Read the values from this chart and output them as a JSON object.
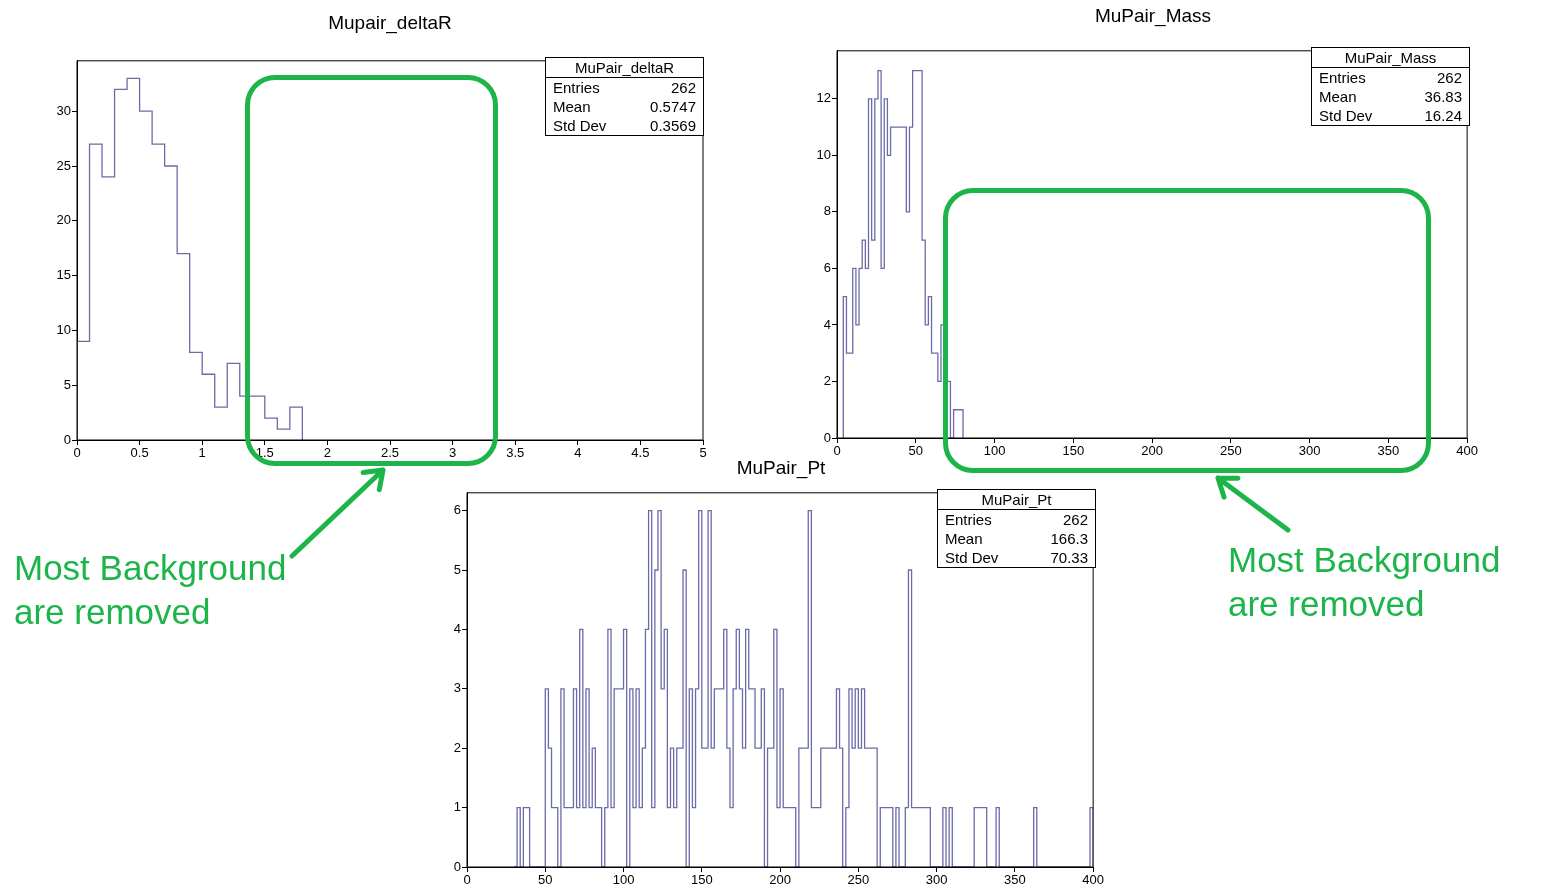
{
  "chart_data": [
    {
      "type": "histogram",
      "title": "Mupair_deltaR",
      "bins": [
        0,
        0.1,
        0.2,
        0.3,
        0.4,
        0.5,
        0.6,
        0.7,
        0.8,
        0.9,
        1,
        1.1,
        1.2,
        1.3,
        1.4,
        1.5,
        1.6,
        1.7,
        1.8
      ],
      "values": [
        9,
        27,
        24,
        32,
        33,
        30,
        27,
        25,
        17,
        8,
        6,
        3,
        7,
        4,
        4,
        2,
        1,
        3
      ],
      "color": "#6b6ba8",
      "xlim": [
        0,
        5
      ],
      "xticks": [
        0,
        0.5,
        1,
        1.5,
        2,
        2.5,
        3,
        3.5,
        4,
        4.5,
        5
      ],
      "ylim": [
        0,
        34.6
      ],
      "yticks": [
        0,
        5,
        10,
        15,
        20,
        25,
        30
      ],
      "grid": false,
      "annotations": [
        "MuPair_deltaR",
        "Entries",
        "262",
        "Mean",
        "0.5747",
        "Std Dev",
        "0.3569",
        "Most Background are removed"
      ]
    },
    {
      "type": "histogram",
      "title": "MuPair_Mass",
      "bins": [
        4,
        6,
        10,
        12,
        14,
        16,
        18,
        20,
        22,
        24,
        26,
        28,
        30,
        32,
        34,
        44,
        46,
        48,
        54,
        56,
        58,
        60,
        64,
        66,
        68,
        72,
        74,
        80
      ],
      "values": [
        5,
        3,
        6,
        4,
        6,
        7,
        6,
        12,
        7,
        12,
        13,
        6,
        12,
        10,
        11,
        8,
        11,
        13,
        7,
        4,
        5,
        3,
        2,
        4,
        2,
        0,
        1
      ],
      "color": "#6b6ba8",
      "xlim": [
        0,
        400
      ],
      "xticks": [
        0,
        50,
        100,
        150,
        200,
        250,
        300,
        350,
        400
      ],
      "ylim": [
        0,
        13.7
      ],
      "yticks": [
        0,
        2,
        4,
        6,
        8,
        10,
        12
      ],
      "grid": false,
      "annotations": [
        "MuPair_Mass",
        "Entries",
        "262",
        "Mean",
        "36.83",
        "Std Dev",
        "16.24",
        "Most Background are removed"
      ]
    },
    {
      "type": "histogram",
      "title": "MuPair_Pt",
      "bins": [
        30,
        32,
        34,
        36,
        38,
        40,
        42,
        44,
        46,
        48,
        50,
        52,
        54,
        56,
        58,
        60,
        62,
        64,
        66,
        68,
        70,
        72,
        74,
        76,
        78,
        80,
        82,
        84,
        86,
        88,
        90,
        92,
        94,
        96,
        98,
        100,
        102,
        104,
        106,
        108,
        110,
        112,
        114,
        116,
        118,
        120,
        122,
        124,
        126,
        128,
        130,
        132,
        134,
        136,
        138,
        140,
        142,
        144,
        146,
        148,
        150,
        152,
        154,
        156,
        158,
        160,
        162,
        164,
        166,
        168,
        170,
        172,
        174,
        176,
        178,
        180,
        182,
        184,
        186,
        188,
        190,
        192,
        194,
        196,
        198,
        200,
        202,
        204,
        206,
        208,
        210,
        212,
        214,
        216,
        218,
        220,
        222,
        224,
        226,
        228,
        230,
        232,
        234,
        236,
        238,
        240,
        242,
        244,
        246,
        248,
        250,
        252,
        254,
        256,
        258,
        260,
        262,
        264,
        266,
        268,
        270,
        272,
        274,
        276,
        278,
        280,
        282,
        284,
        286,
        288,
        290,
        292,
        294,
        296,
        298,
        300,
        302,
        304,
        306,
        308,
        310,
        312,
        314,
        316,
        318,
        320,
        322,
        324,
        326,
        328,
        330,
        332,
        334,
        336,
        338,
        340,
        342,
        344,
        346,
        348,
        350,
        352,
        354,
        356,
        358,
        360,
        362,
        364,
        366,
        368,
        370,
        372,
        374,
        376,
        378,
        380,
        382,
        384,
        386,
        388,
        390,
        392,
        394,
        396,
        398,
        400
      ],
      "values": [
        0,
        1,
        0,
        1,
        1,
        0,
        0,
        0,
        0,
        0,
        3,
        2,
        1,
        1,
        0,
        3,
        1,
        1,
        1,
        3,
        1,
        4,
        1,
        3,
        1,
        2,
        1,
        1,
        0,
        1,
        4,
        1,
        3,
        3,
        3,
        4,
        0,
        3,
        1,
        3,
        1,
        2,
        4,
        6,
        1,
        5,
        6,
        3,
        4,
        1,
        2,
        1,
        2,
        2,
        5,
        0,
        3,
        1,
        3,
        6,
        2,
        2,
        6,
        2,
        3,
        3,
        3,
        4,
        2,
        1,
        3,
        4,
        3,
        2,
        4,
        3,
        3,
        2,
        2,
        3,
        0,
        2,
        2,
        4,
        1,
        3,
        1,
        1,
        1,
        1,
        0,
        2,
        2,
        2,
        6,
        1,
        1,
        1,
        2,
        2,
        2,
        2,
        2,
        3,
        2,
        0,
        1,
        3,
        2,
        3,
        2,
        3,
        2,
        2,
        2,
        2,
        0,
        1,
        1,
        1,
        1,
        0,
        1,
        0,
        0,
        1,
        5,
        1,
        1,
        1,
        1,
        1,
        1,
        0,
        0,
        0,
        0,
        1,
        0,
        1,
        0,
        0,
        0,
        0,
        0,
        0,
        0,
        1,
        1,
        1,
        1,
        0,
        0,
        0,
        1,
        0,
        0,
        0,
        0,
        0,
        0,
        0,
        0,
        0,
        0,
        0,
        1,
        0,
        0,
        0,
        0,
        0,
        0,
        0,
        0,
        0,
        0,
        0,
        0,
        0,
        0,
        0,
        0,
        0,
        1
      ],
      "color": "#6b6ba8",
      "xlim": [
        0,
        400
      ],
      "xticks": [
        0,
        50,
        100,
        150,
        200,
        250,
        300,
        350,
        400
      ],
      "ylim": [
        0,
        6.3
      ],
      "yticks": [
        0,
        1,
        2,
        3,
        4,
        5,
        6
      ],
      "grid": false,
      "annotations": [
        "MuPair_Pt",
        "Entries",
        "262",
        "Mean",
        "166.3",
        "Std Dev",
        "70.33"
      ]
    }
  ]
}
